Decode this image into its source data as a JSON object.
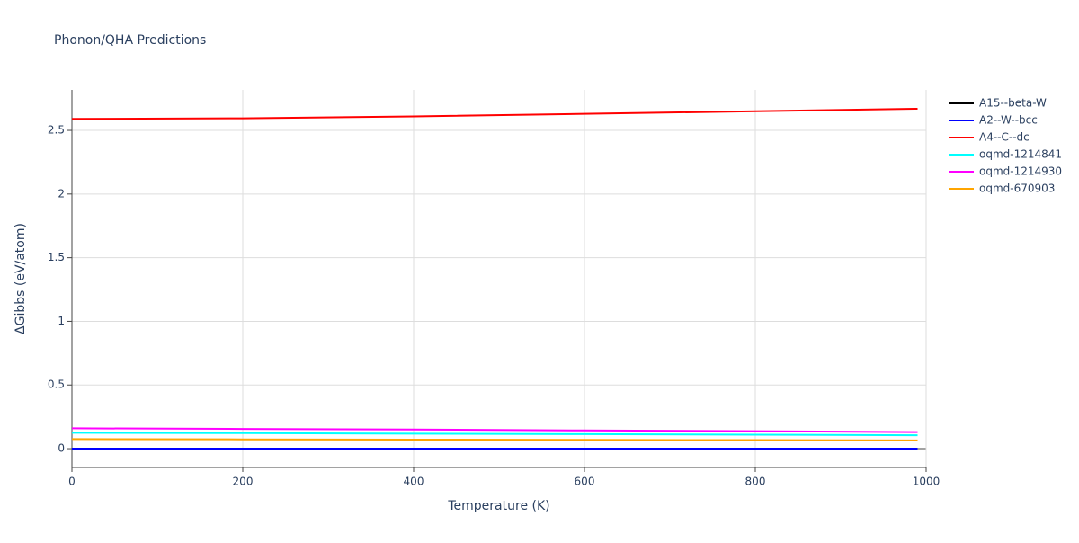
{
  "chart_data": {
    "type": "line",
    "title": "Phonon/QHA Predictions",
    "x_label": "Temperature (K)",
    "y_label": "ΔGibbs (eV/atom)",
    "x": [
      0,
      200,
      400,
      600,
      800,
      990
    ],
    "series": [
      {
        "name": "A15--beta-W",
        "color": "#000000",
        "values": [
          0,
          0,
          0,
          0,
          0,
          0
        ]
      },
      {
        "name": "A2--W--bcc",
        "color": "#0000ff",
        "values": [
          0,
          0,
          0,
          0,
          0,
          0
        ]
      },
      {
        "name": "A4--C--dc",
        "color": "#ff0000",
        "values": [
          2.59,
          2.595,
          2.61,
          2.63,
          2.65,
          2.67
        ]
      },
      {
        "name": "oqmd-1214841",
        "color": "#00ffff",
        "values": [
          0.125,
          0.122,
          0.118,
          0.114,
          0.11,
          0.105
        ]
      },
      {
        "name": "oqmd-1214930",
        "color": "#ff00ff",
        "values": [
          0.16,
          0.155,
          0.15,
          0.143,
          0.137,
          0.13
        ]
      },
      {
        "name": "oqmd-670903",
        "color": "#ffa500",
        "values": [
          0.075,
          0.073,
          0.071,
          0.069,
          0.067,
          0.065
        ]
      }
    ],
    "xlim": [
      0,
      1000
    ],
    "xticks": [
      0,
      200,
      400,
      600,
      800,
      1000
    ],
    "ylim": [
      -0.148,
      2.818
    ],
    "yticks": [
      0,
      0.5,
      1,
      1.5,
      2,
      2.5
    ],
    "grid": true
  }
}
